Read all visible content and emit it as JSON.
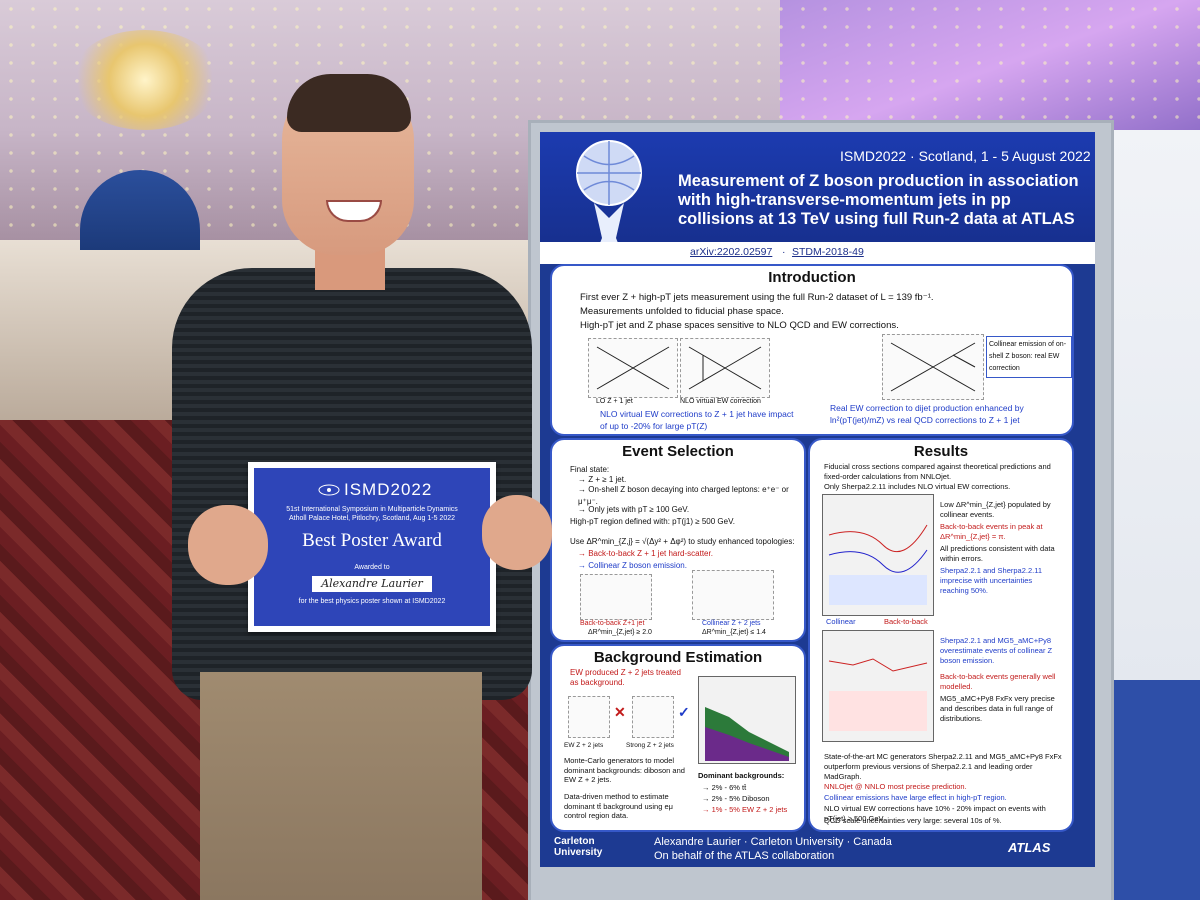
{
  "certificate": {
    "title": "ISMD2022",
    "symposium": "51st International Symposium in Multiparticle Dynamics",
    "venue": "Atholl Palace Hotel, Pitlochry, Scotland, Aug 1-5 2022",
    "award": "Best Poster Award",
    "awarded_to": "Awarded to",
    "recipient": "Alexandre Laurier",
    "for_text": "for the best physics poster shown at ISMD2022"
  },
  "poster": {
    "conference": "ISMD2022 · Scotland, 1 - 5 August 2022",
    "title": "Measurement of Z boson production in association with high-transverse-momentum jets in pp collisions at 13 TeV using full Run-2 data at ATLAS",
    "ref_arxiv": "arXiv:2202.02597",
    "ref_stdm": "STDM-2018-49",
    "introduction": {
      "title": "Introduction",
      "b1": "First ever Z + high-pT jets measurement using the full Run-2 dataset of L = 139 fb⁻¹.",
      "b2": "Measurements unfolded to fiducial phase space.",
      "b3": "High-pT jet and Z phase spaces sensitive to NLO QCD and EW corrections.",
      "diag1": "LO Z + 1 jet",
      "diag2": "NLO virtual EW correction",
      "collinear_note": "Collinear emission of on-shell Z boson: real EW correction",
      "note_left": "NLO virtual EW corrections to Z + 1 jet have impact of up to -20% for large pT(Z)",
      "note_right": "Real EW correction to dijet production enhanced by ln²(pT(jet)/mZ) vs real QCD corrections to Z + 1 jet"
    },
    "event_selection": {
      "title": "Event Selection",
      "l1": "Final state:",
      "l2": "→ Z + ≥ 1 jet.",
      "l3": "→ On-shell Z boson decaying into charged leptons: e⁺e⁻ or μ⁺μ⁻.",
      "l4": "→ Only jets with pT ≥ 100 GeV.",
      "l5": "High-pT region defined with: pT(j1) ≥ 500 GeV.",
      "l6": "Use ΔR^min_{Z,j} = √(Δy² + Δφ²) to study enhanced topologies:",
      "l7": "→ Back-to-back Z + 1 jet hard-scatter.",
      "l8": "→ Collinear Z boson emission.",
      "cap1": "Back-to-back Z+1 jet",
      "cap1b": "ΔR^min_{Z,jet} ≥ 2.0",
      "cap2": "Collinear Z + 2 jets",
      "cap2b": "ΔR^min_{Z,jet} ≤ 1.4"
    },
    "results": {
      "title": "Results",
      "r1": "Fiducial cross sections compared against theoretical predictions and fixed-order calculations from NNLOjet.",
      "r2": "Only Sherpa2.2.11 includes NLO virtual EW corrections.",
      "r3": "Low ΔR^min_{Z,jet} populated by collinear events.",
      "r4": "Back-to-back events in peak at ΔR^min_{Z,jet} = π.",
      "r5": "All predictions consistent with data within errors.",
      "r6": "Sherpa2.2.1 and Sherpa2.2.11 imprecise with uncertainties reaching 50%.",
      "lab_collinear": "Collinear",
      "lab_b2b": "Back-to-back",
      "r7": "Sherpa2.2.1 and MG5_aMC+Py8 overestimate events of collinear Z boson emission.",
      "r8": "Back-to-back events generally well modelled.",
      "r9": "MG5_aMC+Py8 FxFx very precise and describes data in full range of distributions.",
      "r10": "State-of-the-art MC generators Sherpa2.2.11 and MG5_aMC+Py8 FxFx outperform previous versions of Sherpa2.2.1 and leading order MadGraph.",
      "r11": "NNLOjet @ NNLO most precise prediction.",
      "r12": "Collinear emissions have large effect in high-pT region.",
      "r13": "NLO virtual EW corrections have 10% - 20% impact on events with pT(jet) ≥ 500 GeV.",
      "r14": "QCD scale uncertainties very large: several 10s of %."
    },
    "background": {
      "title": "Background Estimation",
      "b1": "EW produced Z + 2 jets treated as background.",
      "cap1": "EW Z + 2 jets",
      "cap2": "Strong Z + 2 jets",
      "b2": "Monte-Carlo generators to model dominant backgrounds: diboson and EW Z + 2 jets.",
      "b3": "Data-driven method to estimate dominant tt̄ background using eμ control region data.",
      "dom_title": "Dominant backgrounds:",
      "d1": "→ 2% - 6% tt̄",
      "d2": "→ 2% - 5% Diboson",
      "d3": "→ 1% - 5% EW Z + 2 jets"
    },
    "footer": {
      "university": "Carleton University",
      "author": "Alexandre Laurier · Carleton University · Canada",
      "collab": "On behalf of the ATLAS collaboration",
      "atlas": "ATLAS"
    }
  },
  "colors": {
    "poster_blue": "#1d3a92",
    "cert_blue": "#2e45b8",
    "highlight_red": "#c21a1a"
  }
}
